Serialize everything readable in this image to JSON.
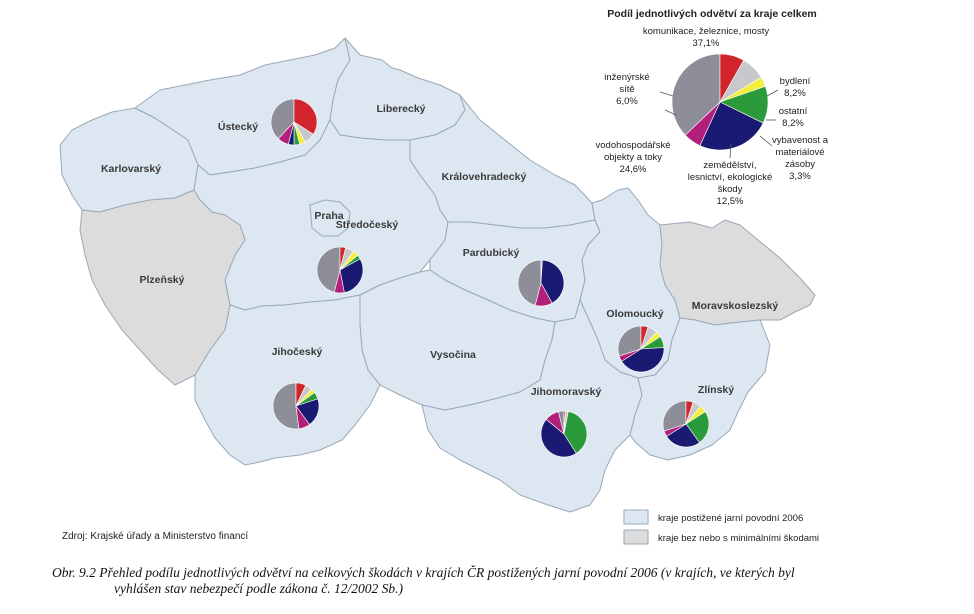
{
  "colors": {
    "affected": "#dde7f2",
    "unaffected": "#dcdcdc",
    "border": "#9aa8b8",
    "communications": "#8e8e98",
    "housing": "#d2242c",
    "other": "#c8c8cc",
    "stocks": "#f3ee3c",
    "agriculture": "#2a9a3a",
    "water": "#1a1a72",
    "engineering": "#b2207c"
  },
  "regions": [
    {
      "name": "Karlovarský",
      "affected": true
    },
    {
      "name": "Ústecký",
      "affected": true
    },
    {
      "name": "Liberecký",
      "affected": true
    },
    {
      "name": "Královehradecký",
      "affected": true
    },
    {
      "name": "Praha",
      "affected": true
    },
    {
      "name": "Středočeský",
      "affected": true
    },
    {
      "name": "Plzeňský",
      "affected": false
    },
    {
      "name": "Pardubický",
      "affected": true
    },
    {
      "name": "Moravskoslezský",
      "affected": false
    },
    {
      "name": "Olomoucký",
      "affected": true
    },
    {
      "name": "Vysočina",
      "affected": true
    },
    {
      "name": "Jihočeský",
      "affected": true
    },
    {
      "name": "Jihomoravský",
      "affected": true
    },
    {
      "name": "Zlínský",
      "affected": true
    }
  ],
  "overall": {
    "title": "Podíl jednotlivých odvětví za kraje celkem",
    "sectors": [
      {
        "key": "communications",
        "l1": "komunikace, železnice, mosty",
        "l2": "37,1%",
        "value": 37.1
      },
      {
        "key": "housing",
        "l1": "bydlení",
        "l2": "8,2%",
        "value": 8.2
      },
      {
        "key": "other",
        "l1": "ostatní",
        "l2": "8,2%",
        "value": 8.2
      },
      {
        "key": "stocks",
        "l1": "vybavenost a",
        "l2": "materiálové",
        "l3": "zásoby",
        "l4": "3,3%",
        "value": 3.3
      },
      {
        "key": "agriculture",
        "l1": "zemědělství,",
        "l2": "lesnictví, ekologické",
        "l3": "škody",
        "l4": "12,5%",
        "value": 12.5
      },
      {
        "key": "water",
        "l1": "vodohospodářské",
        "l2": "objekty a toky",
        "l3": "24,6%",
        "value": 24.6
      },
      {
        "key": "engineering",
        "l1": "inženýrské",
        "l2": "sítě",
        "l3": "6,0%",
        "value": 6.0
      }
    ]
  },
  "regional_pies": [
    {
      "region": "Ústecký",
      "values": {
        "communications": 38,
        "housing": 34,
        "other": 8,
        "stocks": 4,
        "agriculture": 4,
        "water": 4,
        "engineering": 8
      }
    },
    {
      "region": "Středočeský",
      "values": {
        "communications": 46,
        "housing": 4,
        "other": 6,
        "stocks": 4,
        "agriculture": 3,
        "water": 30,
        "engineering": 7
      }
    },
    {
      "region": "Pardubický",
      "values": {
        "communications": 46,
        "housing": 0,
        "other": 1,
        "stocks": 0,
        "agriculture": 0,
        "water": 41,
        "engineering": 12
      }
    },
    {
      "region": "Olomoucký",
      "values": {
        "communications": 30,
        "housing": 5,
        "other": 7,
        "stocks": 4,
        "agriculture": 8,
        "water": 42,
        "engineering": 4
      }
    },
    {
      "region": "Jihočeský",
      "values": {
        "communications": 52,
        "housing": 7,
        "other": 5,
        "stocks": 3,
        "agriculture": 5,
        "water": 20,
        "engineering": 8
      }
    },
    {
      "region": "Jihomoravský",
      "values": {
        "communications": 4,
        "housing": 1,
        "other": 2,
        "stocks": 0,
        "agriculture": 38,
        "water": 45,
        "engineering": 10
      }
    },
    {
      "region": "Zlínský",
      "values": {
        "communications": 30,
        "housing": 5,
        "other": 6,
        "stocks": 5,
        "agriculture": 24,
        "water": 26,
        "engineering": 4
      }
    }
  ],
  "legend": {
    "affected_label": "kraje postižené jarní povodní 2006",
    "unaffected_label": "kraje bez nebo s minimálními škodami"
  },
  "source": "Zdroj: Krajské úřady a Ministerstvo financí",
  "caption": {
    "line1": "Obr. 9.2 Přehled podílu jednotlivých odvětví na celkových škodách v krajích ČR postižených jarní povodní 2006 (v krajích, ve kterých byl",
    "line2": "vyhlášen stav nebezpečí podle zákona č. 12/2002 Sb.)"
  }
}
